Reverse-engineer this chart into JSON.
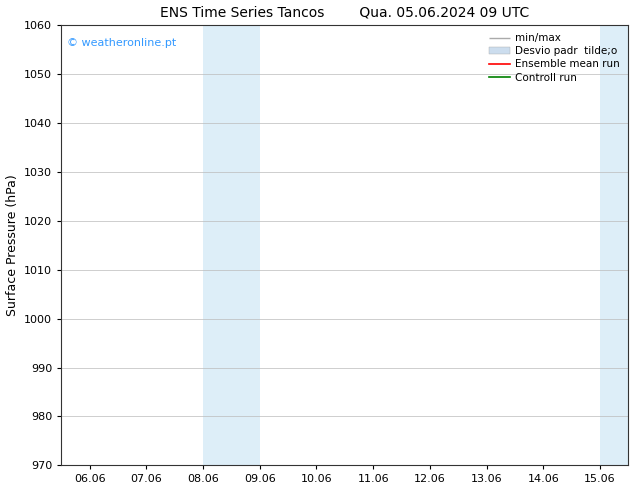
{
  "title_left": "ENS Time Series Tancos",
  "title_right": "Qua. 05.06.2024 09 UTC",
  "ylabel": "Surface Pressure (hPa)",
  "ylim": [
    970,
    1060
  ],
  "yticks": [
    970,
    980,
    990,
    1000,
    1010,
    1020,
    1030,
    1040,
    1050,
    1060
  ],
  "xtick_labels": [
    "06.06",
    "07.06",
    "08.06",
    "09.06",
    "10.06",
    "11.06",
    "12.06",
    "13.06",
    "14.06",
    "15.06"
  ],
  "shaded_regions": [
    {
      "xstart": 2,
      "xend": 3,
      "color": "#ddeef8"
    },
    {
      "xstart": 9,
      "xend": 9.5,
      "color": "#ddeef8"
    }
  ],
  "watermark": "© weatheronline.pt",
  "watermark_color": "#3399ff",
  "bg_color": "#ffffff",
  "grid_color": "#bbbbbb",
  "spine_color": "#333333",
  "legend_minmax_color": "#aaaaaa",
  "legend_desvio_color": "#ccddee",
  "legend_ensemble_color": "red",
  "legend_control_color": "green"
}
